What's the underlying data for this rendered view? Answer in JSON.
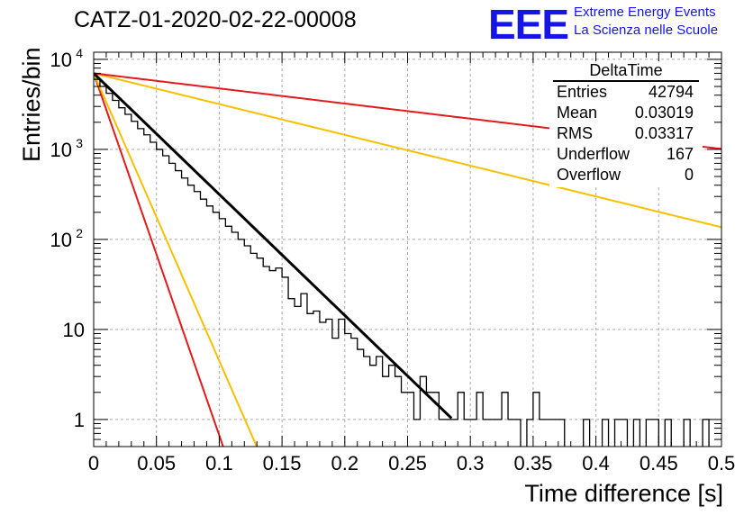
{
  "header": {
    "title": "CATZ-01-2020-02-22-00008",
    "logo_text": "EEE",
    "brand_line1": "Extreme Energy Events",
    "brand_line2": "La Scienza nelle Scuole"
  },
  "stats_box": {
    "name": "DeltaTime",
    "rows": [
      {
        "label": "Entries",
        "value": "42794"
      },
      {
        "label": "Mean",
        "value": "0.03019"
      },
      {
        "label": "RMS",
        "value": "0.03317"
      },
      {
        "label": "Underflow",
        "value": "167"
      },
      {
        "label": "Overflow",
        "value": "0"
      }
    ]
  },
  "chart_data": {
    "type": "line",
    "title": "CATZ-01-2020-02-22-00008",
    "xlabel": "Time difference [s]",
    "ylabel": "Entries/bin",
    "xlim": [
      0,
      0.5
    ],
    "ylim": [
      0.5,
      12000
    ],
    "y_scale": "log",
    "grid": true,
    "x_ticks": [
      "0",
      "0.05",
      "0.1",
      "0.15",
      "0.2",
      "0.25",
      "0.3",
      "0.35",
      "0.4",
      "0.45",
      "0.5"
    ],
    "y_ticks": [
      {
        "value": 1,
        "label": "1"
      },
      {
        "value": 10,
        "label": "10"
      },
      {
        "value": 100,
        "label": "10",
        "exp": "2"
      },
      {
        "value": 1000,
        "label": "10",
        "exp": "3"
      },
      {
        "value": 10000,
        "label": "10",
        "exp": "4"
      }
    ],
    "colors": {
      "histogram": "#000000",
      "fit": "#000000",
      "red": "#e31a1c",
      "yellow": "#f5c000",
      "grid": "#aaaaaa"
    },
    "histogram": {
      "name": "DeltaTime",
      "x": [
        0.005,
        0.01,
        0.015,
        0.02,
        0.025,
        0.03,
        0.035,
        0.04,
        0.045,
        0.05,
        0.055,
        0.06,
        0.065,
        0.07,
        0.075,
        0.08,
        0.085,
        0.09,
        0.095,
        0.1,
        0.105,
        0.11,
        0.115,
        0.12,
        0.125,
        0.13,
        0.135,
        0.14,
        0.145,
        0.15,
        0.155,
        0.16,
        0.165,
        0.17,
        0.175,
        0.18,
        0.185,
        0.19,
        0.195,
        0.2,
        0.205,
        0.21,
        0.215,
        0.22,
        0.225,
        0.23,
        0.235,
        0.24,
        0.245,
        0.25,
        0.255,
        0.26,
        0.265,
        0.27,
        0.275,
        0.28,
        0.285,
        0.29,
        0.295,
        0.3,
        0.305,
        0.31,
        0.315,
        0.32,
        0.325,
        0.33,
        0.335,
        0.34,
        0.345,
        0.35,
        0.355,
        0.36,
        0.365,
        0.37,
        0.375,
        0.38,
        0.385,
        0.39,
        0.395,
        0.4,
        0.405,
        0.41,
        0.415,
        0.42,
        0.425,
        0.43,
        0.435,
        0.44,
        0.445,
        0.45,
        0.455,
        0.46,
        0.465,
        0.47,
        0.475,
        0.48,
        0.485,
        0.49,
        0.495,
        0.5
      ],
      "y": [
        6000,
        5000,
        4200,
        3500,
        2900,
        2450,
        2050,
        1700,
        1450,
        1200,
        1000,
        850,
        700,
        580,
        480,
        400,
        340,
        280,
        235,
        200,
        170,
        140,
        120,
        100,
        85,
        70,
        62,
        50,
        45,
        48,
        38,
        22,
        18,
        25,
        15,
        16,
        12,
        13,
        8,
        13,
        9,
        8,
        6,
        5,
        4,
        5,
        3,
        4,
        3,
        2,
        2,
        1,
        3,
        2,
        2,
        1,
        1,
        1,
        2,
        1,
        1,
        2,
        1,
        1,
        1,
        2,
        1,
        1,
        0,
        1,
        2,
        1,
        1,
        1,
        1,
        0,
        0,
        0,
        1,
        0,
        0,
        1,
        0,
        1,
        1,
        0,
        1,
        0,
        1,
        1,
        0,
        1,
        0,
        0,
        1,
        0,
        0,
        1,
        0,
        0
      ]
    },
    "fit_curve": {
      "type": "exponential",
      "y0": 7000,
      "tau": 0.0323,
      "x_range": [
        0,
        0.285
      ]
    },
    "band_lines": [
      {
        "name": "",
        "color": "red",
        "y0": 7000,
        "tau": 0.0108
      },
      {
        "name": "",
        "color": "yellow",
        "y0": 7000,
        "tau": 0.0136
      },
      {
        "name": "",
        "color": "yellow",
        "y0": 7000,
        "tau": 0.127
      },
      {
        "name": "",
        "color": "red",
        "y0": 7000,
        "tau": 0.2585
      }
    ]
  }
}
